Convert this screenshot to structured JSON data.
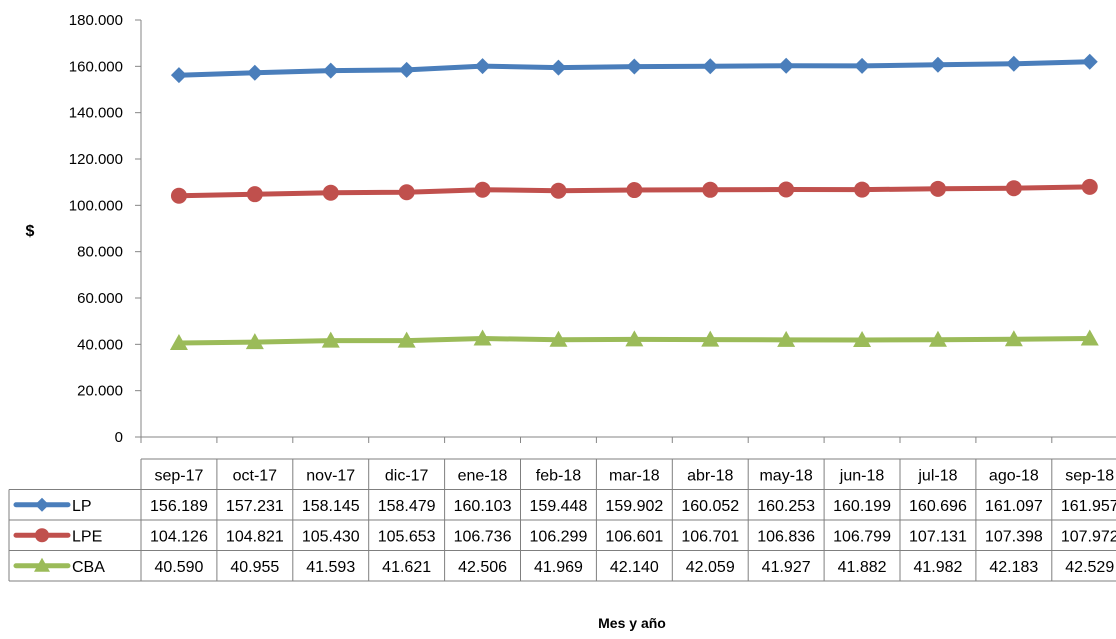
{
  "chart_data": {
    "type": "line",
    "ylabel": "$",
    "xlabel": "Mes y año",
    "ylim": [
      0,
      180000
    ],
    "ytick_step": 20000,
    "y_ticks": [
      "0",
      "20.000",
      "40.000",
      "60.000",
      "80.000",
      "100.000",
      "120.000",
      "140.000",
      "160.000",
      "180.000"
    ],
    "grid": false,
    "legend": "data-table-left",
    "categories": [
      "sep-17",
      "oct-17",
      "nov-17",
      "dic-17",
      "ene-18",
      "feb-18",
      "mar-18",
      "abr-18",
      "may-18",
      "jun-18",
      "jul-18",
      "ago-18",
      "sep-18"
    ],
    "series": [
      {
        "name": "LP",
        "color": "#4a7ebb",
        "marker": "diamond",
        "values": [
          156189,
          157231,
          158145,
          158479,
          160103,
          159448,
          159902,
          160052,
          160253,
          160199,
          160696,
          161097,
          161957
        ],
        "labels": [
          "156.189",
          "157.231",
          "158.145",
          "158.479",
          "160.103",
          "159.448",
          "159.902",
          "160.052",
          "160.253",
          "160.199",
          "160.696",
          "161.097",
          "161.957"
        ]
      },
      {
        "name": "LPE",
        "color": "#c0504d",
        "marker": "circle",
        "values": [
          104126,
          104821,
          105430,
          105653,
          106736,
          106299,
          106601,
          106701,
          106836,
          106799,
          107131,
          107398,
          107972
        ],
        "labels": [
          "104.126",
          "104.821",
          "105.430",
          "105.653",
          "106.736",
          "106.299",
          "106.601",
          "106.701",
          "106.836",
          "106.799",
          "107.131",
          "107.398",
          "107.972"
        ]
      },
      {
        "name": "CBA",
        "color": "#9bbb59",
        "marker": "triangle",
        "values": [
          40590,
          40955,
          41593,
          41621,
          42506,
          41969,
          42140,
          42059,
          41927,
          41882,
          41982,
          42183,
          42529
        ],
        "labels": [
          "40.590",
          "40.955",
          "41.593",
          "41.621",
          "42.506",
          "41.969",
          "42.140",
          "42.059",
          "41.927",
          "41.882",
          "41.982",
          "42.183",
          "42.529"
        ]
      }
    ]
  }
}
